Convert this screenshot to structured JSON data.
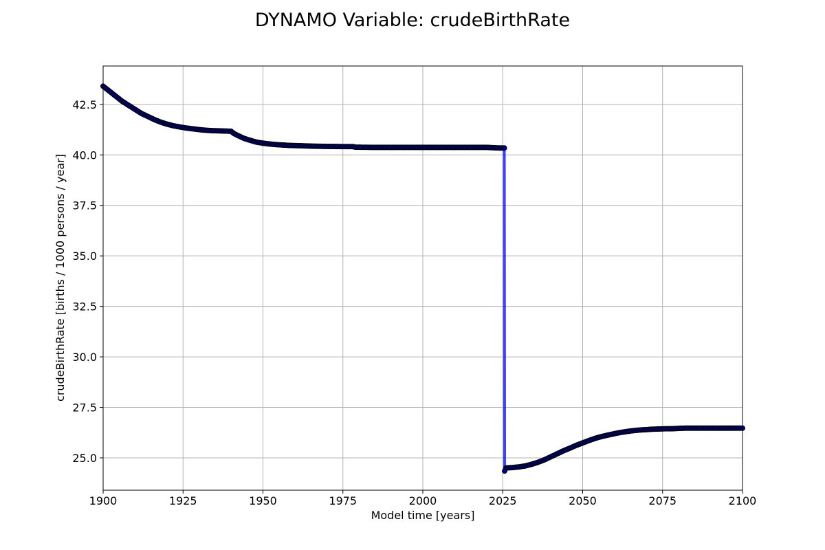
{
  "chart_data": {
    "type": "line",
    "title": "DYNAMO Variable: crudeBirthRate",
    "xlabel": "Model time [years]",
    "ylabel": "crudeBirthRate [births / 1000 persons / year]",
    "xlim": [
      1900,
      2100
    ],
    "ylim": [
      23.4,
      44.4
    ],
    "xticks": [
      1900,
      1925,
      1950,
      1975,
      2000,
      2025,
      2050,
      2075,
      2100
    ],
    "xtick_labels": [
      "1900",
      "1925",
      "1950",
      "1975",
      "2000",
      "2025",
      "2050",
      "2075",
      "2100"
    ],
    "yticks": [
      25.0,
      27.5,
      30.0,
      32.5,
      35.0,
      37.5,
      40.0,
      42.5
    ],
    "ytick_labels": [
      "25.0",
      "27.5",
      "30.0",
      "32.5",
      "35.0",
      "37.5",
      "40.0",
      "42.5"
    ],
    "grid": true,
    "legend": null,
    "colors": {
      "line": "#0000ff",
      "marker_face": "#00008b",
      "marker_edge": "#000000"
    },
    "series": [
      {
        "x": [
          1900,
          1902,
          1904,
          1906,
          1908,
          1910,
          1912,
          1914,
          1916,
          1918,
          1920,
          1922,
          1924,
          1926,
          1928,
          1930,
          1932,
          1934,
          1936,
          1938,
          1940,
          1941,
          1942,
          1944,
          1946,
          1948,
          1950,
          1952,
          1954,
          1956,
          1958,
          1960,
          1962,
          1964,
          1966,
          1970,
          1975,
          1978,
          1979,
          1985,
          1990,
          2000,
          2010,
          2020,
          2024,
          2025.5,
          2025.6,
          2026,
          2028,
          2030,
          2032,
          2034,
          2036,
          2038,
          2040,
          2042,
          2044,
          2046,
          2048,
          2050,
          2052,
          2054,
          2056,
          2058,
          2060,
          2062,
          2064,
          2066,
          2068,
          2070,
          2072,
          2074,
          2076,
          2078,
          2080,
          2082,
          2085,
          2090,
          2095,
          2100
        ],
        "y": [
          43.4,
          43.15,
          42.9,
          42.65,
          42.45,
          42.25,
          42.05,
          41.9,
          41.75,
          41.62,
          41.52,
          41.44,
          41.38,
          41.33,
          41.29,
          41.25,
          41.22,
          41.2,
          41.19,
          41.18,
          41.17,
          41.05,
          40.97,
          40.82,
          40.72,
          40.63,
          40.58,
          40.54,
          40.51,
          40.49,
          40.47,
          40.46,
          40.45,
          40.44,
          40.43,
          40.42,
          40.41,
          40.41,
          40.38,
          40.37,
          40.37,
          40.37,
          40.37,
          40.37,
          40.34,
          40.34,
          24.35,
          24.5,
          24.52,
          24.55,
          24.6,
          24.68,
          24.78,
          24.9,
          25.05,
          25.2,
          25.35,
          25.48,
          25.62,
          25.74,
          25.86,
          25.97,
          26.06,
          26.13,
          26.2,
          26.26,
          26.31,
          26.35,
          26.38,
          26.4,
          26.42,
          26.43,
          26.44,
          26.44,
          26.46,
          26.47,
          26.47,
          26.47,
          26.47,
          26.47
        ]
      }
    ]
  }
}
